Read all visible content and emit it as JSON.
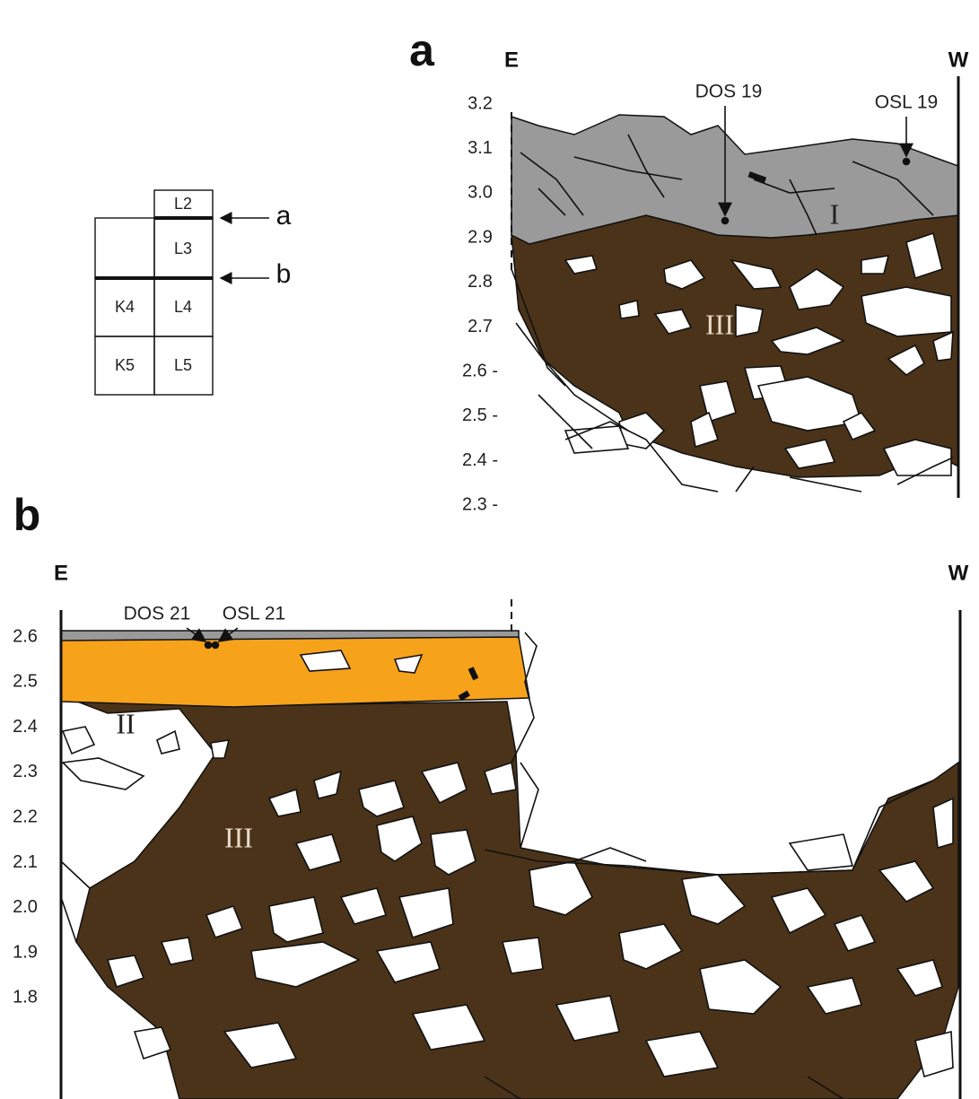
{
  "key_plan": {
    "cells": [
      "L2",
      "L3",
      "K4",
      "L4",
      "K5",
      "L5"
    ],
    "markers": [
      "a",
      "b"
    ]
  },
  "section_a": {
    "label": "a",
    "left": "E",
    "right": "W",
    "scale": [
      "3.2",
      "3.1",
      "3.0",
      "2.9",
      "2.8",
      "2.7",
      "2.6 -",
      "2.5 -",
      "2.4 -",
      "2.3 -"
    ],
    "samples": [
      "DOS 19",
      "OSL 19"
    ],
    "layers": [
      "I",
      "III"
    ]
  },
  "section_b": {
    "label": "b",
    "left": "E",
    "right": "W",
    "scale": [
      "2.6",
      "2.5",
      "2.4",
      "2.3",
      "2.2",
      "2.1",
      "2.0",
      "1.9",
      "1.8"
    ],
    "samples": [
      "DOS 21",
      "OSL 21"
    ],
    "layers": [
      "II",
      "III"
    ]
  }
}
